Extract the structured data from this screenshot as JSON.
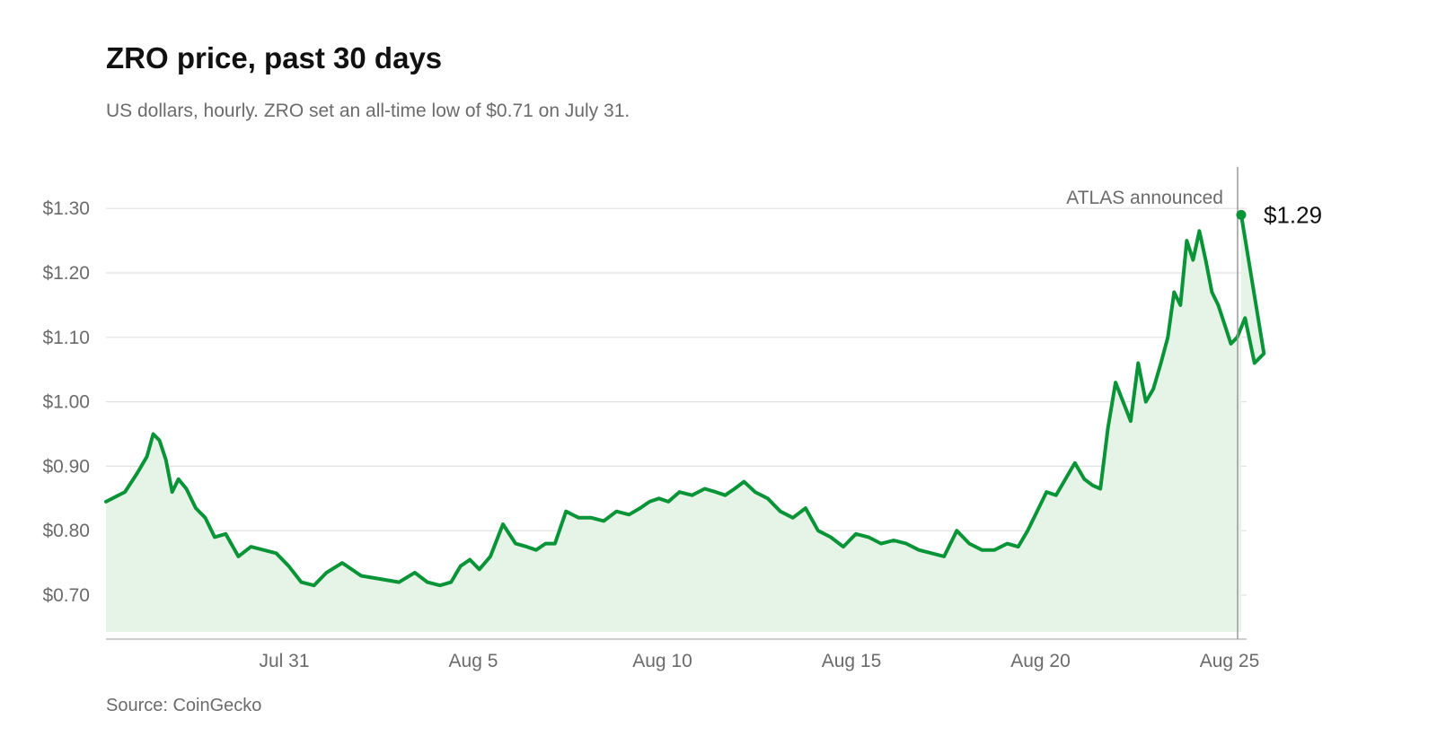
{
  "title": "ZRO price, past 30 days",
  "subtitle": "US dollars, hourly. ZRO set an all-time low of $0.71 on July 31.",
  "source": "Source: CoinGecko",
  "colors": {
    "line": "#0a9438",
    "area": "#e6f4e8",
    "grid": "#e2e2e2",
    "axis": "#bdbdbd",
    "annotation_line": "#9a9a9a"
  },
  "chart_data": {
    "type": "area",
    "title": "ZRO price, past 30 days",
    "ylabel": "US dollars",
    "ylim": [
      0.64,
      1.33
    ],
    "y_ticks": [
      {
        "value": 0.7,
        "label": "$0.70"
      },
      {
        "value": 0.8,
        "label": "$0.80"
      },
      {
        "value": 0.9,
        "label": "$0.90"
      },
      {
        "value": 1.0,
        "label": "$1.00"
      },
      {
        "value": 1.1,
        "label": "$1.10"
      },
      {
        "value": 1.2,
        "label": "$1.20"
      },
      {
        "value": 1.3,
        "label": "$1.30"
      }
    ],
    "x_domain": [
      "Jul 26",
      "Aug 25 (latest)"
    ],
    "x_ticks": [
      "Jul 31",
      "Aug 5",
      "Aug 10",
      "Aug 15",
      "Aug 20",
      "Aug 25"
    ],
    "grid": true,
    "series": [
      {
        "points": [
          [
            "Jul 26",
            0.845
          ],
          [
            "Jul 26",
            0.86
          ],
          [
            "Jul 26",
            0.89
          ],
          [
            "Jul 27",
            0.915
          ],
          [
            "Jul 27",
            0.95
          ],
          [
            "Jul 27",
            0.94
          ],
          [
            "Jul 27",
            0.91
          ],
          [
            "Jul 27",
            0.86
          ],
          [
            "Jul 27",
            0.88
          ],
          [
            "Jul 28",
            0.865
          ],
          [
            "Jul 28",
            0.835
          ],
          [
            "Jul 28",
            0.82
          ],
          [
            "Jul 28",
            0.79
          ],
          [
            "Jul 29",
            0.795
          ],
          [
            "Jul 29",
            0.76
          ],
          [
            "Jul 29",
            0.775
          ],
          [
            "Jul 30",
            0.77
          ],
          [
            "Jul 30",
            0.765
          ],
          [
            "Jul 30",
            0.745
          ],
          [
            "Jul 31",
            0.72
          ],
          [
            "Jul 31",
            0.715
          ],
          [
            "Jul 31",
            0.735
          ],
          [
            "Aug 1",
            0.75
          ],
          [
            "Aug 1",
            0.73
          ],
          [
            "Aug 2",
            0.725
          ],
          [
            "Aug 2",
            0.72
          ],
          [
            "Aug 3",
            0.735
          ],
          [
            "Aug 3",
            0.72
          ],
          [
            "Aug 3",
            0.715
          ],
          [
            "Aug 4",
            0.72
          ],
          [
            "Aug 4",
            0.745
          ],
          [
            "Aug 4",
            0.755
          ],
          [
            "Aug 4",
            0.74
          ],
          [
            "Aug 5",
            0.76
          ],
          [
            "Aug 5",
            0.81
          ],
          [
            "Aug 5",
            0.78
          ],
          [
            "Aug 6",
            0.775
          ],
          [
            "Aug 6",
            0.77
          ],
          [
            "Aug 6",
            0.78
          ],
          [
            "Aug 6",
            0.78
          ],
          [
            "Aug 7",
            0.83
          ],
          [
            "Aug 7",
            0.82
          ],
          [
            "Aug 7",
            0.82
          ],
          [
            "Aug 8",
            0.815
          ],
          [
            "Aug 8",
            0.83
          ],
          [
            "Aug 8",
            0.825
          ],
          [
            "Aug 9",
            0.835
          ],
          [
            "Aug 9",
            0.845
          ],
          [
            "Aug 9",
            0.85
          ],
          [
            "Aug 9",
            0.845
          ],
          [
            "Aug 10",
            0.86
          ],
          [
            "Aug 10",
            0.855
          ],
          [
            "Aug 10",
            0.865
          ],
          [
            "Aug 11",
            0.86
          ],
          [
            "Aug 11",
            0.855
          ],
          [
            "Aug 11",
            0.865
          ],
          [
            "Aug 11",
            0.876
          ],
          [
            "Aug 12",
            0.86
          ],
          [
            "Aug 12",
            0.85
          ],
          [
            "Aug 12",
            0.83
          ],
          [
            "Aug 13",
            0.82
          ],
          [
            "Aug 13",
            0.835
          ],
          [
            "Aug 13",
            0.8
          ],
          [
            "Aug 14",
            0.79
          ],
          [
            "Aug 14",
            0.775
          ],
          [
            "Aug 14",
            0.795
          ],
          [
            "Aug 15",
            0.79
          ],
          [
            "Aug 15",
            0.78
          ],
          [
            "Aug 15",
            0.785
          ],
          [
            "Aug 16",
            0.78
          ],
          [
            "Aug 16",
            0.77
          ],
          [
            "Aug 16",
            0.765
          ],
          [
            "Aug 17",
            0.76
          ],
          [
            "Aug 17",
            0.8
          ],
          [
            "Aug 17",
            0.78
          ],
          [
            "Aug 18",
            0.77
          ],
          [
            "Aug 18",
            0.77
          ],
          [
            "Aug 18",
            0.78
          ],
          [
            "Aug 19",
            0.775
          ],
          [
            "Aug 19",
            0.8
          ],
          [
            "Aug 19",
            0.83
          ],
          [
            "Aug 19",
            0.86
          ],
          [
            "Aug 20",
            0.855
          ],
          [
            "Aug 20",
            0.88
          ],
          [
            "Aug 20",
            0.905
          ],
          [
            "Aug 20",
            0.88
          ],
          [
            "Aug 21",
            0.87
          ],
          [
            "Aug 21",
            0.865
          ],
          [
            "Aug 21",
            0.96
          ],
          [
            "Aug 21",
            1.03
          ],
          [
            "Aug 21",
            1.0
          ],
          [
            "Aug 22",
            0.97
          ],
          [
            "Aug 22",
            1.06
          ],
          [
            "Aug 22",
            1.0
          ],
          [
            "Aug 22",
            1.02
          ],
          [
            "Aug 22",
            1.06
          ],
          [
            "Aug 23",
            1.1
          ],
          [
            "Aug 23",
            1.17
          ],
          [
            "Aug 23",
            1.15
          ],
          [
            "Aug 23",
            1.25
          ],
          [
            "Aug 23",
            1.22
          ],
          [
            "Aug 23",
            1.265
          ],
          [
            "Aug 24",
            1.22
          ],
          [
            "Aug 24",
            1.17
          ],
          [
            "Aug 24",
            1.15
          ],
          [
            "Aug 24",
            1.12
          ],
          [
            "Aug 24",
            1.09
          ],
          [
            "Aug 24",
            1.1
          ],
          [
            "Aug 25",
            1.13
          ],
          [
            "Aug 25",
            1.06
          ],
          [
            "Aug 25",
            1.075
          ],
          [
            "Aug 25",
            1.29
          ]
        ]
      }
    ],
    "last_value_label": "$1.29",
    "annotations": [
      {
        "text": "ATLAS announced",
        "x": "Aug 25"
      }
    ]
  }
}
